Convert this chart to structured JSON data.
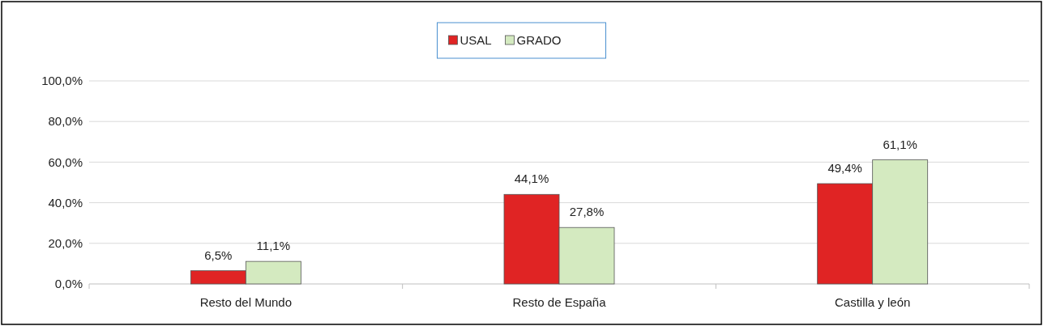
{
  "chart_data": {
    "type": "bar",
    "categories": [
      "Resto del Mundo",
      "Resto de España",
      "Castilla y león"
    ],
    "series": [
      {
        "name": "USAL",
        "color": "#e02424",
        "values": [
          6.5,
          44.1,
          49.4
        ],
        "value_labels": [
          "6,5%",
          "44,1%",
          "49,4%"
        ]
      },
      {
        "name": "GRADO",
        "color": "#d4eac0",
        "values": [
          11.1,
          27.8,
          61.1
        ],
        "value_labels": [
          "11,1%",
          "27,8%",
          "61,1%"
        ]
      }
    ],
    "ylim": [
      0,
      100
    ],
    "yticks": [
      {
        "value": 0,
        "label": "0,0%"
      },
      {
        "value": 20,
        "label": "20,0%"
      },
      {
        "value": 40,
        "label": "40,0%"
      },
      {
        "value": 60,
        "label": "60,0%"
      },
      {
        "value": 80,
        "label": "80,0%"
      },
      {
        "value": 100,
        "label": "100,0%"
      }
    ],
    "grid": "y",
    "legend": "top"
  }
}
